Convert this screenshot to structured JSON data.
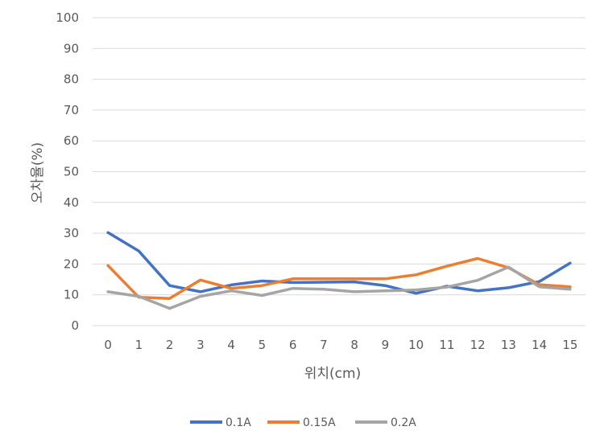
{
  "chart_data": {
    "type": "line",
    "x": [
      "0",
      "1",
      "2",
      "3",
      "4",
      "5",
      "6",
      "7",
      "8",
      "9",
      "10",
      "11",
      "12",
      "13",
      "14",
      "15"
    ],
    "xlabel": "위치(cm)",
    "ylabel": "오차율(%)",
    "ylim": [
      0,
      100
    ],
    "yticks": [
      0,
      10,
      20,
      30,
      40,
      50,
      60,
      70,
      80,
      90,
      100
    ],
    "grid": true,
    "legend": "bottom",
    "series": [
      {
        "name": "0.1A",
        "color": "#4472C4",
        "values": [
          30.2,
          24.2,
          13.0,
          11.0,
          13.2,
          14.5,
          14.0,
          14.1,
          14.2,
          13.0,
          10.5,
          12.8,
          11.3,
          12.3,
          14.3,
          20.3
        ]
      },
      {
        "name": "0.15A",
        "color": "#ED7D31",
        "values": [
          19.5,
          9.2,
          8.8,
          14.8,
          12.1,
          13.0,
          15.2,
          15.2,
          15.2,
          15.2,
          16.5,
          19.3,
          21.8,
          18.8,
          13.3,
          12.6
        ]
      },
      {
        "name": "0.2A",
        "color": "#A5A5A5",
        "values": [
          11.0,
          9.5,
          5.6,
          9.5,
          11.3,
          9.8,
          12.1,
          11.8,
          11.0,
          11.3,
          11.6,
          12.5,
          14.7,
          19.0,
          12.6,
          11.8
        ]
      }
    ]
  }
}
